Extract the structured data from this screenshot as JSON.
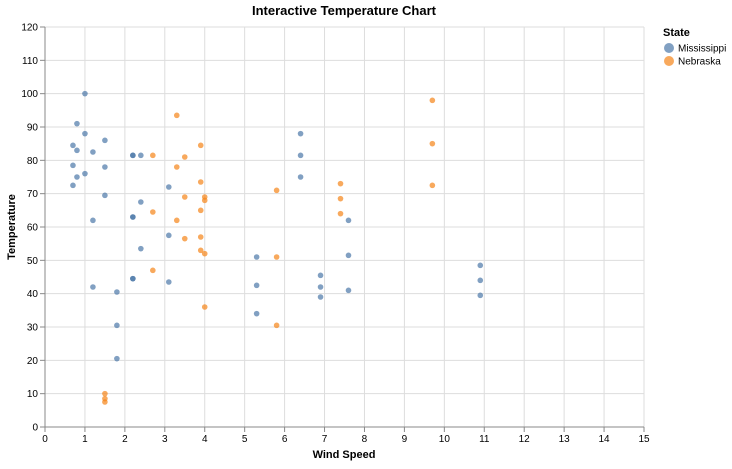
{
  "chart_data": {
    "type": "scatter",
    "title": "Interactive Temperature Chart",
    "xlabel": "Wind Speed",
    "ylabel": "Temperature",
    "xlim": [
      0,
      15
    ],
    "ylim": [
      0,
      120
    ],
    "x_ticks": [
      0,
      1,
      2,
      3,
      4,
      5,
      6,
      7,
      8,
      9,
      10,
      11,
      12,
      13,
      14,
      15
    ],
    "y_ticks": [
      0,
      10,
      20,
      30,
      40,
      50,
      60,
      70,
      80,
      90,
      100,
      110,
      120
    ],
    "grid": true,
    "legend": {
      "title": "State",
      "placement": "right"
    },
    "series": [
      {
        "name": "Mississippi",
        "color": "#4c78a8",
        "points": [
          [
            0.7,
            84.5
          ],
          [
            0.8,
            83.0
          ],
          [
            0.8,
            91.0
          ],
          [
            0.7,
            78.5
          ],
          [
            0.8,
            75.0
          ],
          [
            0.7,
            72.5
          ],
          [
            1.0,
            100.0
          ],
          [
            1.0,
            88.0
          ],
          [
            1.0,
            76.0
          ],
          [
            1.2,
            82.5
          ],
          [
            1.2,
            62.0
          ],
          [
            1.2,
            42.0
          ],
          [
            1.5,
            86.0
          ],
          [
            1.5,
            78.0
          ],
          [
            1.5,
            69.5
          ],
          [
            1.8,
            40.5
          ],
          [
            1.8,
            30.5
          ],
          [
            1.8,
            20.5
          ],
          [
            2.2,
            81.5
          ],
          [
            2.2,
            81.5
          ],
          [
            2.2,
            63.0
          ],
          [
            2.2,
            63.0
          ],
          [
            2.2,
            44.5
          ],
          [
            2.2,
            44.5
          ],
          [
            2.4,
            81.5
          ],
          [
            2.4,
            67.5
          ],
          [
            2.4,
            53.5
          ],
          [
            3.1,
            72.0
          ],
          [
            3.1,
            57.5
          ],
          [
            3.1,
            43.5
          ],
          [
            5.3,
            51.0
          ],
          [
            5.3,
            42.5
          ],
          [
            5.3,
            34.0
          ],
          [
            6.4,
            88.0
          ],
          [
            6.4,
            81.5
          ],
          [
            6.4,
            75.0
          ],
          [
            6.9,
            45.5
          ],
          [
            6.9,
            42.0
          ],
          [
            6.9,
            39.0
          ],
          [
            7.6,
            62.0
          ],
          [
            7.6,
            51.5
          ],
          [
            7.6,
            41.0
          ],
          [
            10.9,
            48.5
          ],
          [
            10.9,
            44.0
          ],
          [
            10.9,
            39.5
          ]
        ]
      },
      {
        "name": "Nebraska",
        "color": "#f58518",
        "points": [
          [
            1.5,
            10.0
          ],
          [
            1.5,
            8.5
          ],
          [
            1.5,
            7.5
          ],
          [
            2.7,
            81.5
          ],
          [
            2.7,
            64.5
          ],
          [
            2.7,
            47.0
          ],
          [
            3.3,
            93.5
          ],
          [
            3.3,
            78.0
          ],
          [
            3.3,
            62.0
          ],
          [
            3.5,
            81.0
          ],
          [
            3.5,
            69.0
          ],
          [
            3.5,
            56.5
          ],
          [
            3.9,
            84.5
          ],
          [
            3.9,
            73.5
          ],
          [
            3.9,
            65.0
          ],
          [
            3.9,
            57.0
          ],
          [
            3.9,
            53.0
          ],
          [
            4.0,
            69.0
          ],
          [
            4.0,
            68.0
          ],
          [
            4.0,
            52.0
          ],
          [
            4.0,
            36.0
          ],
          [
            5.8,
            71.0
          ],
          [
            5.8,
            51.0
          ],
          [
            5.8,
            30.5
          ],
          [
            7.4,
            73.0
          ],
          [
            7.4,
            68.5
          ],
          [
            7.4,
            64.0
          ],
          [
            9.7,
            98.0
          ],
          [
            9.7,
            85.0
          ],
          [
            9.7,
            72.5
          ]
        ]
      }
    ]
  }
}
